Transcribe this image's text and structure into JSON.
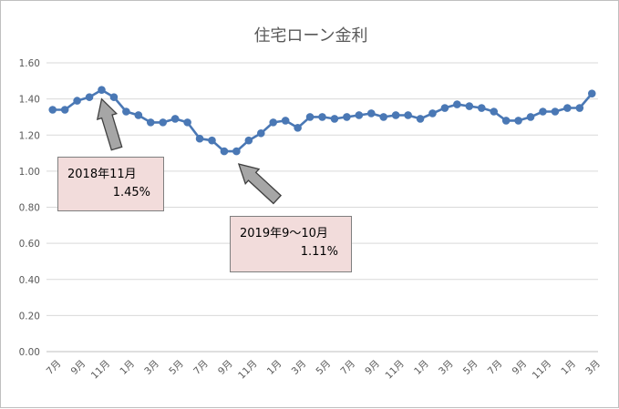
{
  "chart_data": {
    "type": "line",
    "title": "住宅ローン金利",
    "xlabel": "",
    "ylabel": "",
    "ylim": [
      0,
      1.6
    ],
    "yticks": [
      "0.00",
      "0.20",
      "0.40",
      "0.60",
      "0.80",
      "1.00",
      "1.20",
      "1.40",
      "1.60"
    ],
    "grid": true,
    "legend": "none",
    "categories": [
      "7月",
      "8月",
      "9月",
      "10月",
      "11月",
      "12月",
      "1月",
      "2月",
      "3月",
      "4月",
      "5月",
      "6月",
      "7月",
      "8月",
      "9月",
      "10月",
      "11月",
      "12月",
      "1月",
      "2月",
      "3月",
      "4月",
      "5月",
      "6月",
      "7月",
      "8月",
      "9月",
      "10月",
      "11月",
      "12月",
      "1月",
      "2月",
      "3月",
      "4月",
      "5月",
      "6月",
      "7月",
      "8月",
      "9月",
      "10月",
      "11月",
      "12月",
      "1月",
      "2月",
      "3月"
    ],
    "x_tick_labels": [
      "7月",
      "9月",
      "11月",
      "1月",
      "3月",
      "5月",
      "7月",
      "9月",
      "11月",
      "1月",
      "3月",
      "5月",
      "7月",
      "9月",
      "11月",
      "1月",
      "3月",
      "5月",
      "7月",
      "9月",
      "11月",
      "1月",
      "3月"
    ],
    "series": [
      {
        "color": "#4a78b5",
        "values": [
          1.34,
          1.34,
          1.39,
          1.41,
          1.45,
          1.41,
          1.33,
          1.31,
          1.27,
          1.27,
          1.29,
          1.27,
          1.18,
          1.17,
          1.11,
          1.11,
          1.17,
          1.21,
          1.27,
          1.28,
          1.24,
          1.3,
          1.3,
          1.29,
          1.3,
          1.31,
          1.32,
          1.3,
          1.31,
          1.31,
          1.29,
          1.32,
          1.35,
          1.37,
          1.36,
          1.35,
          1.33,
          1.28,
          1.28,
          1.3,
          1.33,
          1.33,
          1.35,
          1.35,
          1.43
        ]
      }
    ],
    "annotations": [
      {
        "label_line1": "2018年11月",
        "label_line2": "1.45%",
        "point_index": 4
      },
      {
        "label_line1": "2019年9～10月",
        "label_line2": "1.11%",
        "point_index": 14
      }
    ]
  },
  "colors": {
    "series": "#4a78b5",
    "callout_fill": "#f2dcdb",
    "arrow_fill": "#a6a6a6",
    "gridline": "#d9d9d9"
  }
}
